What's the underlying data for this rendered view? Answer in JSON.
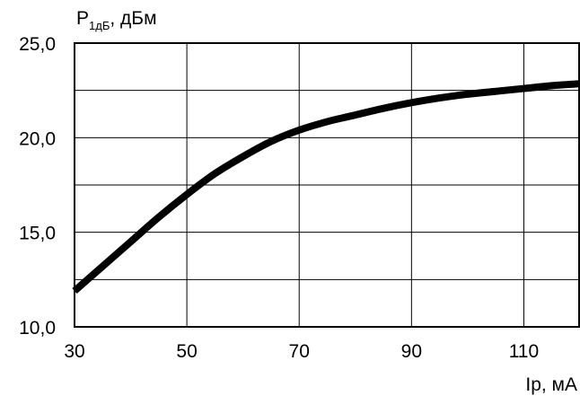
{
  "chart_data": {
    "type": "line",
    "title": "",
    "ylabel": {
      "main": "P",
      "sub": "1дБ",
      "unit": ", дБм"
    },
    "xlabel": "Iр, мА",
    "xlim": [
      30,
      120
    ],
    "ylim": [
      10.0,
      25.0
    ],
    "x_ticks": [
      30,
      50,
      70,
      90,
      110
    ],
    "x_tick_labels": [
      "30",
      "50",
      "70",
      "90",
      "110"
    ],
    "y_ticks": [
      10,
      15,
      20,
      25
    ],
    "y_tick_labels": [
      "10,0",
      "15,0",
      "20,0",
      "25,0"
    ],
    "x_grid": [
      30,
      50,
      70,
      90,
      110
    ],
    "y_grid": [
      12.5,
      15,
      17.5,
      20,
      22.5
    ],
    "grid": true,
    "series": [
      {
        "x": [
          30,
          35,
          40,
          45,
          50,
          55,
          60,
          65,
          70,
          75,
          80,
          85,
          90,
          95,
          100,
          105,
          110,
          115,
          120
        ],
        "values": [
          11.9,
          13.2,
          14.5,
          15.8,
          17.0,
          18.1,
          19.0,
          19.8,
          20.4,
          20.85,
          21.2,
          21.55,
          21.85,
          22.1,
          22.3,
          22.45,
          22.6,
          22.75,
          22.85
        ]
      }
    ],
    "colors": {
      "line": "#000000",
      "grid": "#000000",
      "background": "#ffffff"
    }
  }
}
